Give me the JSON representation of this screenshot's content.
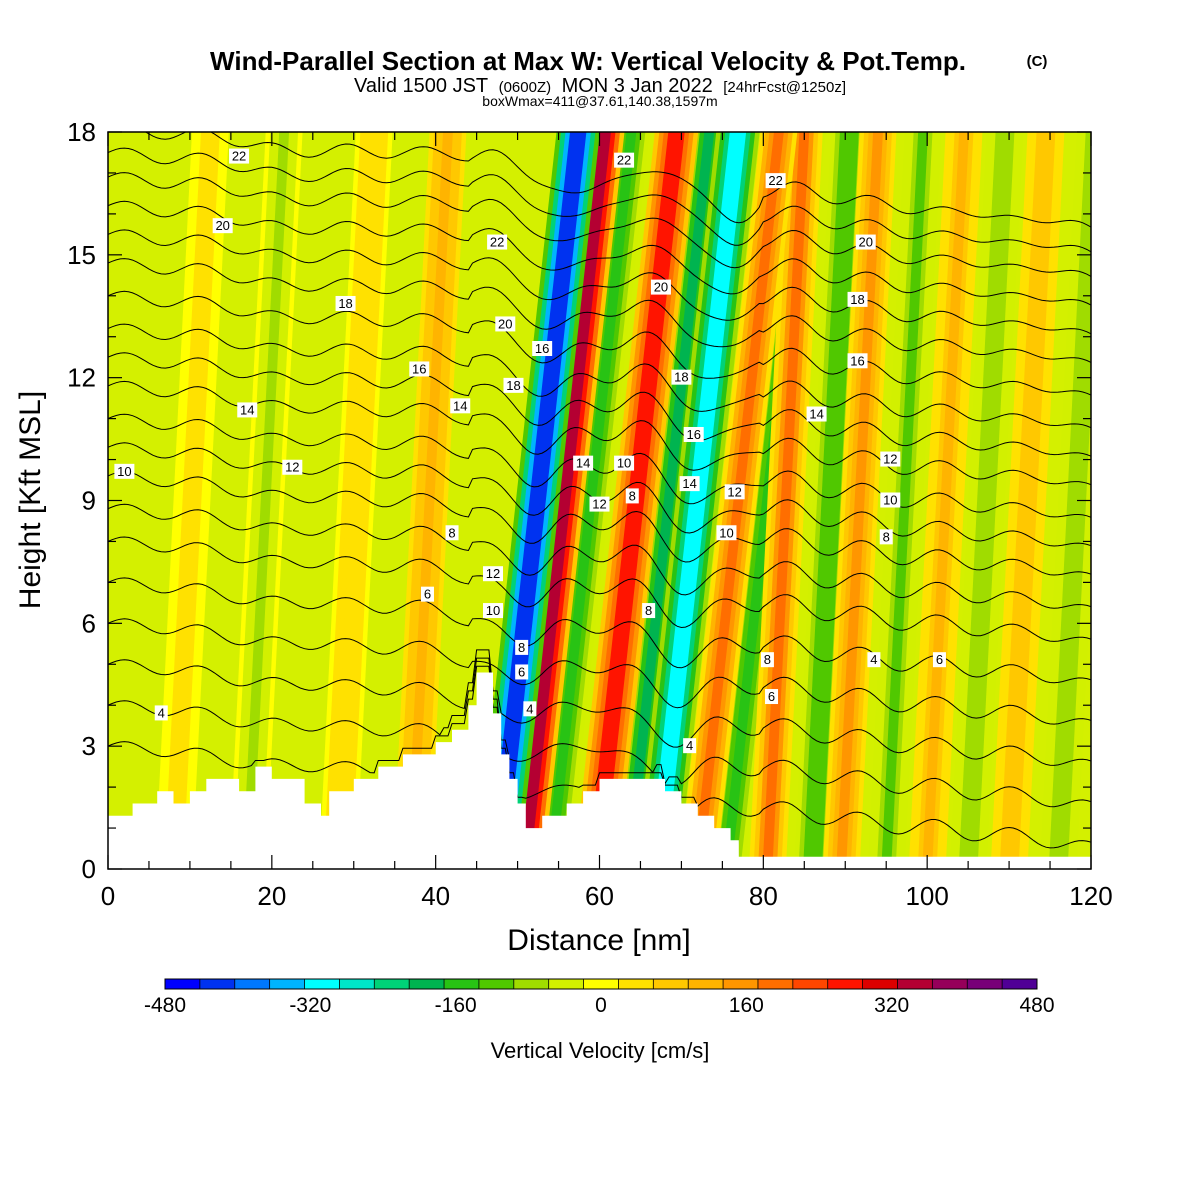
{
  "chart_data": {
    "type": "heatmap",
    "title": "Wind-Parallel Section at Max W: Vertical Velocity & Pot.Temp.",
    "title_unit": "(C)",
    "subtitle_parts": {
      "valid": "Valid 1500 JST",
      "utc": "(0600Z)",
      "date": "MON 3 Jan 2022",
      "forecast": "[24hrFcst@1250z]"
    },
    "subtitle2": "boxWmax=411@37.61,140.38,1597m",
    "xlabel": "Distance [nm]",
    "ylabel": "Height [Kft MSL]",
    "xlim": [
      0,
      120
    ],
    "ylim": [
      0,
      18
    ],
    "x_ticks": [
      "0",
      "20",
      "40",
      "60",
      "80",
      "100",
      "120"
    ],
    "y_ticks": [
      "0",
      "3",
      "6",
      "9",
      "12",
      "15",
      "18"
    ],
    "colorbar": {
      "label": "Vertical Velocity [cm/s]",
      "range": [
        -480,
        480
      ],
      "tick_labels": [
        "-480",
        "-320",
        "-160",
        "0",
        "160",
        "320",
        "480"
      ],
      "colors": [
        "#0000ff",
        "#0032f0",
        "#0078ff",
        "#00b4ff",
        "#00ffff",
        "#00e6c8",
        "#00d278",
        "#00b450",
        "#28c314",
        "#50c800",
        "#a0dc00",
        "#d2f000",
        "#ffff00",
        "#ffe100",
        "#ffc800",
        "#ffb400",
        "#ff9600",
        "#ff6e00",
        "#ff4600",
        "#ff1400",
        "#dc0000",
        "#b40032",
        "#96005a",
        "#780078",
        "#500096"
      ]
    },
    "velocity_bands": [
      {
        "x": 47.5,
        "w": -440
      },
      {
        "x": 50.5,
        "w": 350
      },
      {
        "x": 54,
        "w": -170
      },
      {
        "x": 59.5,
        "w": 280
      },
      {
        "x": 63.5,
        "w": -180
      },
      {
        "x": 67,
        "w": -300
      },
      {
        "x": 72,
        "w": 200
      },
      {
        "x": 75.5,
        "w": -150
      },
      {
        "x": 80.5,
        "w": 190
      },
      {
        "x": 86,
        "w": -130
      },
      {
        "x": 89.5,
        "w": 150
      },
      {
        "x": 95,
        "w": -110
      },
      {
        "x": 100,
        "w": 110
      },
      {
        "x": 105,
        "w": -90
      },
      {
        "x": 110,
        "w": 90
      },
      {
        "x": 116,
        "w": -80
      },
      {
        "x": 37,
        "w": 120
      },
      {
        "x": 17,
        "w": -60
      },
      {
        "x": 28,
        "w": 40
      },
      {
        "x": 8,
        "w": 30
      }
    ],
    "terrain_kft": [
      [
        0,
        1.3
      ],
      [
        3,
        1.3
      ],
      [
        3,
        1.6
      ],
      [
        6,
        1.6
      ],
      [
        6,
        1.9
      ],
      [
        8,
        1.9
      ],
      [
        8,
        1.6
      ],
      [
        10,
        1.6
      ],
      [
        10,
        1.9
      ],
      [
        12,
        1.9
      ],
      [
        12,
        2.2
      ],
      [
        16,
        2.2
      ],
      [
        16,
        1.9
      ],
      [
        18,
        1.9
      ],
      [
        18,
        2.5
      ],
      [
        20,
        2.5
      ],
      [
        20,
        2.2
      ],
      [
        24,
        2.2
      ],
      [
        24,
        1.6
      ],
      [
        26,
        1.6
      ],
      [
        26,
        1.3
      ],
      [
        27,
        1.3
      ],
      [
        27,
        1.9
      ],
      [
        30,
        1.9
      ],
      [
        30,
        2.2
      ],
      [
        33,
        2.2
      ],
      [
        33,
        2.5
      ],
      [
        36,
        2.5
      ],
      [
        36,
        2.8
      ],
      [
        40,
        2.8
      ],
      [
        40,
        3.1
      ],
      [
        42,
        3.1
      ],
      [
        42,
        3.4
      ],
      [
        44,
        3.4
      ],
      [
        44,
        4.0
      ],
      [
        45,
        4.0
      ],
      [
        45,
        4.8
      ],
      [
        47,
        4.8
      ],
      [
        47,
        3.8
      ],
      [
        48,
        3.8
      ],
      [
        48,
        2.8
      ],
      [
        49,
        2.8
      ],
      [
        49,
        2.2
      ],
      [
        50,
        2.2
      ],
      [
        50,
        1.6
      ],
      [
        51,
        1.6
      ],
      [
        51,
        1.0
      ],
      [
        53,
        1.0
      ],
      [
        53,
        1.3
      ],
      [
        56,
        1.3
      ],
      [
        56,
        1.6
      ],
      [
        58,
        1.6
      ],
      [
        58,
        1.9
      ],
      [
        60,
        1.9
      ],
      [
        60,
        2.2
      ],
      [
        68,
        2.2
      ],
      [
        68,
        1.9
      ],
      [
        70,
        1.9
      ],
      [
        70,
        1.6
      ],
      [
        72,
        1.6
      ],
      [
        72,
        1.3
      ],
      [
        74,
        1.3
      ],
      [
        74,
        1.0
      ],
      [
        76,
        1.0
      ],
      [
        76,
        0.7
      ],
      [
        77,
        0.7
      ],
      [
        77,
        0.3
      ],
      [
        120,
        0.3
      ]
    ],
    "isentropes": [
      {
        "h0": 3.0,
        "label": "4",
        "lx": 6.5,
        "ly": 3.8
      },
      {
        "h0": 4.0,
        "label": "",
        "lx": null,
        "ly": null
      },
      {
        "h0": 5.0,
        "label": "6",
        "lx": 39,
        "ly": 6.7
      },
      {
        "h0": 6.0,
        "label": "",
        "lx": null,
        "ly": null
      },
      {
        "h0": 7.0,
        "label": "8",
        "lx": 42,
        "ly": 8.2
      },
      {
        "h0": 8.0,
        "label": "",
        "lx": null,
        "ly": null
      },
      {
        "h0": 8.8,
        "label": "10",
        "lx": 2,
        "ly": 9.7
      },
      {
        "h0": 9.6,
        "label": "",
        "lx": null,
        "ly": null
      },
      {
        "h0": 10.3,
        "label": "12",
        "lx": 22.5,
        "ly": 9.8
      },
      {
        "h0": 11.0,
        "label": "",
        "lx": null,
        "ly": null
      },
      {
        "h0": 11.8,
        "label": "14",
        "lx": 17,
        "ly": 11.2
      },
      {
        "h0": 12.5,
        "label": "",
        "lx": null,
        "ly": null
      },
      {
        "h0": 13.2,
        "label": "16",
        "lx": 38,
        "ly": 12.2
      },
      {
        "h0": 14.0,
        "label": "",
        "lx": null,
        "ly": null
      },
      {
        "h0": 14.8,
        "label": "18",
        "lx": 29,
        "ly": 13.8
      },
      {
        "h0": 15.5,
        "label": "",
        "lx": null,
        "ly": null
      },
      {
        "h0": 16.2,
        "label": "20",
        "lx": 14,
        "ly": 15.7
      },
      {
        "h0": 16.9,
        "label": "",
        "lx": null,
        "ly": null
      },
      {
        "h0": 17.5,
        "label": "22",
        "lx": 16,
        "ly": 17.4
      },
      {
        "h0": 18.1,
        "label": "",
        "lx": null,
        "ly": null
      }
    ],
    "wave_labels": [
      {
        "text": "22",
        "x": 47.5,
        "y": 15.3
      },
      {
        "text": "20",
        "x": 48.5,
        "y": 13.3
      },
      {
        "text": "16",
        "x": 53,
        "y": 12.7
      },
      {
        "text": "18",
        "x": 49.5,
        "y": 11.8
      },
      {
        "text": "14",
        "x": 43,
        "y": 11.3
      },
      {
        "text": "14",
        "x": 58,
        "y": 9.9
      },
      {
        "text": "10",
        "x": 63,
        "y": 9.9
      },
      {
        "text": "12",
        "x": 60,
        "y": 8.9
      },
      {
        "text": "8",
        "x": 64,
        "y": 9.1
      },
      {
        "text": "12",
        "x": 47,
        "y": 7.2
      },
      {
        "text": "10",
        "x": 47,
        "y": 6.3
      },
      {
        "text": "8",
        "x": 50.5,
        "y": 5.4
      },
      {
        "text": "6",
        "x": 50.5,
        "y": 4.8
      },
      {
        "text": "4",
        "x": 51.5,
        "y": 3.9
      },
      {
        "text": "22",
        "x": 63,
        "y": 17.3
      },
      {
        "text": "20",
        "x": 67.5,
        "y": 14.2
      },
      {
        "text": "18",
        "x": 70,
        "y": 12.0
      },
      {
        "text": "16",
        "x": 71.5,
        "y": 10.6
      },
      {
        "text": "14",
        "x": 71,
        "y": 9.4
      },
      {
        "text": "8",
        "x": 66,
        "y": 6.3
      },
      {
        "text": "4",
        "x": 71,
        "y": 3.0
      },
      {
        "text": "12",
        "x": 76.5,
        "y": 9.2
      },
      {
        "text": "10",
        "x": 75.5,
        "y": 8.2
      },
      {
        "text": "8",
        "x": 80.5,
        "y": 5.1
      },
      {
        "text": "6",
        "x": 81,
        "y": 4.2
      },
      {
        "text": "22",
        "x": 81.5,
        "y": 16.8
      },
      {
        "text": "20",
        "x": 92.5,
        "y": 15.3
      },
      {
        "text": "18",
        "x": 91.5,
        "y": 13.9
      },
      {
        "text": "16",
        "x": 91.5,
        "y": 12.4
      },
      {
        "text": "14",
        "x": 86.5,
        "y": 11.1
      },
      {
        "text": "12",
        "x": 95.5,
        "y": 10.0
      },
      {
        "text": "10",
        "x": 95.5,
        "y": 9.0
      },
      {
        "text": "8",
        "x": 95,
        "y": 8.1
      },
      {
        "text": "4",
        "x": 93.5,
        "y": 5.1
      },
      {
        "text": "6",
        "x": 101.5,
        "y": 5.1
      }
    ]
  }
}
